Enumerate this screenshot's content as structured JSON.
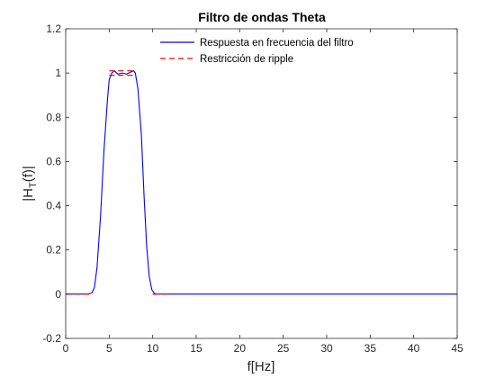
{
  "chart_data": {
    "type": "line",
    "title": "Filtro de ondas Theta",
    "xlabel": "f[Hz]",
    "ylabel_main": "|H",
    "ylabel_sub": "T",
    "ylabel_tail": "(f)|",
    "xlim": [
      0,
      45
    ],
    "ylim": [
      -0.2,
      1.2
    ],
    "xticks": [
      0,
      5,
      10,
      15,
      20,
      25,
      30,
      35,
      40,
      45
    ],
    "xtick_labels": [
      "0",
      "5",
      "10",
      "15",
      "20",
      "25",
      "30",
      "35",
      "40",
      "45"
    ],
    "yticks": [
      -0.2,
      0,
      0.2,
      0.4,
      0.6,
      0.8,
      1,
      1.2
    ],
    "ytick_labels": [
      "-0.2",
      "0",
      "0.2",
      "0.4",
      "0.6",
      "0.8",
      "1",
      "1.2"
    ],
    "grid": false,
    "legend_position": "top-right",
    "series": [
      {
        "name": "Respuesta en frecuencia del filtro",
        "color": "#0000ff",
        "style": "solid",
        "x": [
          0,
          2.5,
          3.0,
          3.3,
          3.6,
          4.0,
          4.4,
          4.8,
          5.0,
          5.3,
          5.6,
          6.0,
          6.5,
          7.0,
          7.5,
          7.8,
          8.0,
          8.3,
          8.7,
          9.0,
          9.3,
          9.6,
          9.9,
          10.2,
          10.5,
          11,
          12,
          15,
          20,
          25,
          30,
          35,
          40,
          45
        ],
        "y": [
          0,
          0,
          0.005,
          0.03,
          0.12,
          0.35,
          0.65,
          0.88,
          0.97,
          1.0,
          1.01,
          0.995,
          1.0,
          0.995,
          1.005,
          1.01,
          1.0,
          0.93,
          0.72,
          0.45,
          0.22,
          0.08,
          0.02,
          0.003,
          0,
          0,
          0,
          0,
          0,
          0,
          0,
          0,
          0,
          0
        ]
      },
      {
        "name": "Restricción de ripple",
        "color": "#ff0000",
        "style": "dashed",
        "segments": [
          {
            "x": [
              0,
              3
            ],
            "y": [
              0,
              0
            ]
          },
          {
            "x": [
              5,
              8
            ],
            "y": [
              0.99,
              0.99
            ]
          },
          {
            "x": [
              5,
              8
            ],
            "y": [
              1.01,
              1.01
            ]
          },
          {
            "x": [
              10,
              12
            ],
            "y": [
              0,
              0
            ]
          }
        ]
      }
    ]
  }
}
